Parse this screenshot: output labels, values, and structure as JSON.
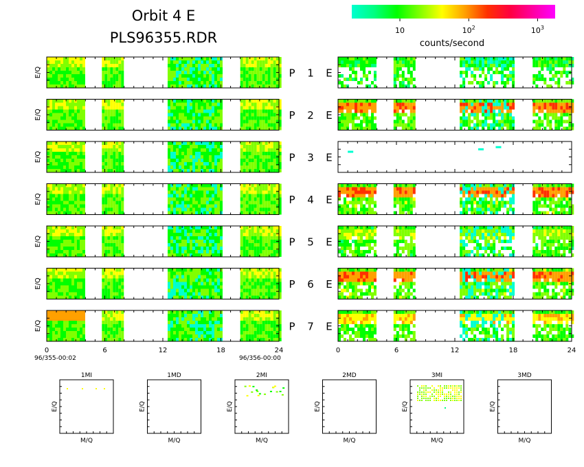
{
  "title": {
    "line1": "Orbit  4  E",
    "line2": "PLS96355.RDR"
  },
  "colorbar": {
    "label": "counts/second",
    "ticks": [
      {
        "base": "10",
        "exp": ""
      },
      {
        "base": "10",
        "exp": "2"
      },
      {
        "base": "10",
        "exp": "3"
      }
    ],
    "tick_values": [
      10,
      100,
      1000
    ],
    "range": [
      2,
      1800
    ],
    "scale": "log",
    "stops": [
      "#00ffd0",
      "#00ff80",
      "#00ff00",
      "#80ff00",
      "#ffff00",
      "#ffa000",
      "#ff3000",
      "#ff0040",
      "#ff00a0",
      "#ff00ff"
    ]
  },
  "chart_data": {
    "type": "heatmap",
    "panels_ylabel": "E/Q",
    "rows": [
      {
        "left_label": "P",
        "index": "1",
        "right_label": "E"
      },
      {
        "left_label": "P",
        "index": "2",
        "right_label": "E"
      },
      {
        "left_label": "P",
        "index": "3",
        "right_label": "E"
      },
      {
        "left_label": "P",
        "index": "4",
        "right_label": "E"
      },
      {
        "left_label": "P",
        "index": "5",
        "right_label": "E"
      },
      {
        "left_label": "P",
        "index": "6",
        "right_label": "E"
      },
      {
        "left_label": "P",
        "index": "7",
        "right_label": "E"
      }
    ],
    "left_xaxis": {
      "range": [
        0,
        24
      ],
      "ticks": [
        "0",
        "6",
        "12",
        "18",
        "24"
      ],
      "start_label": "96/355-00:02",
      "end_label": "96/356-00:00"
    },
    "right_xaxis": {
      "range": [
        0,
        24
      ],
      "ticks": [
        "0",
        "6",
        "12",
        "18",
        "24"
      ]
    },
    "data_intervals_hours": [
      [
        0,
        3.8
      ],
      [
        5.7,
        7.8
      ],
      [
        12.5,
        17.9
      ],
      [
        20,
        24
      ]
    ],
    "ion_panels": [
      {
        "label": "1MI",
        "xlabel": "M/Q",
        "ylabel": "E/Q"
      },
      {
        "label": "1MD",
        "xlabel": "M/Q",
        "ylabel": "E/Q"
      },
      {
        "label": "2MI",
        "xlabel": "M/Q",
        "ylabel": "E/Q"
      },
      {
        "label": "2MD",
        "xlabel": "M/Q",
        "ylabel": "E/Q"
      },
      {
        "label": "3MI",
        "xlabel": "M/Q",
        "ylabel": "E/Q"
      },
      {
        "label": "3MD",
        "xlabel": "M/Q",
        "ylabel": "E/Q"
      }
    ]
  }
}
